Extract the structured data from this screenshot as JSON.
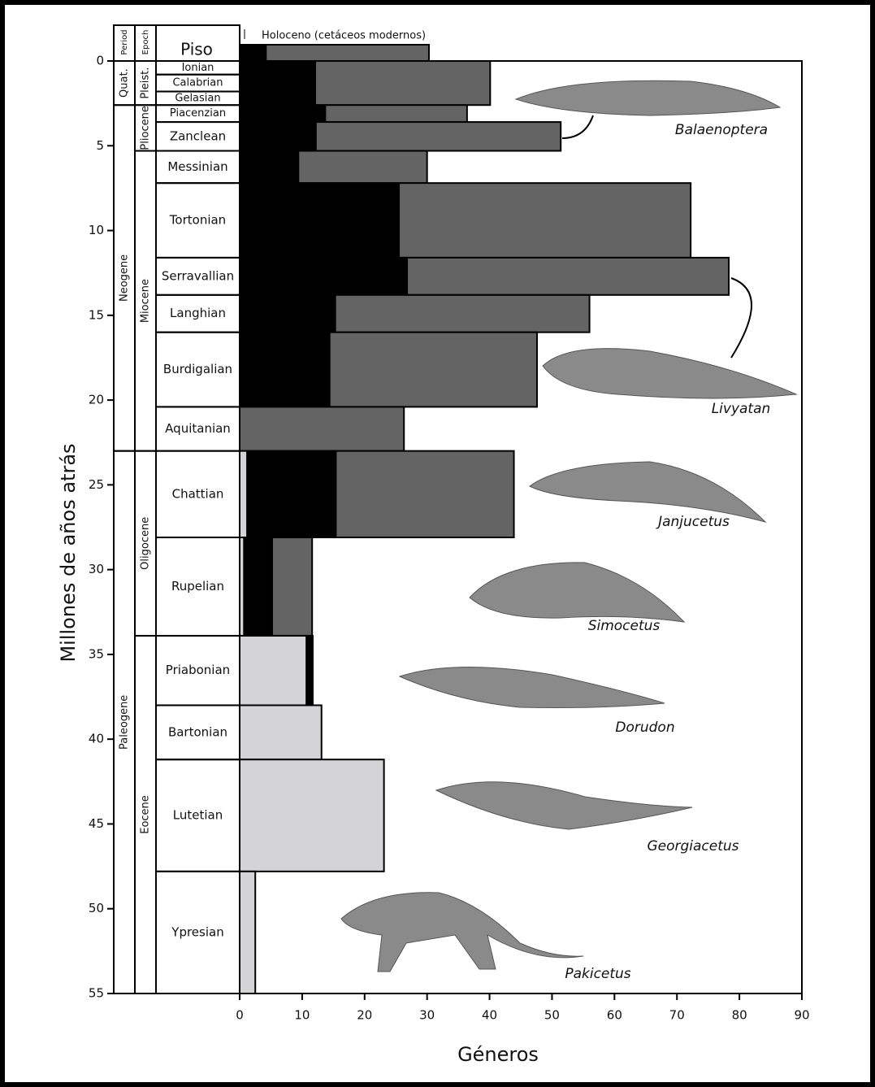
{
  "chart_data": {
    "type": "stacked-interval-bar",
    "y_label": "Millones de años atrás",
    "x_label": "Géneros",
    "ylim": [
      0,
      55
    ],
    "yticks": [
      0,
      5,
      10,
      15,
      20,
      25,
      30,
      35,
      40,
      45,
      50,
      55
    ],
    "xlim": [
      0,
      90
    ],
    "xticks": [
      0,
      10,
      20,
      30,
      40,
      50,
      60,
      70,
      80,
      90
    ],
    "colors": [
      "#d4d4d6",
      "#000000",
      "#646464"
    ],
    "headers": {
      "period": "Period",
      "epoch": "Epoch",
      "stage": "Piso"
    },
    "periods": [
      {
        "name": "Quat.",
        "start": 0,
        "end": 2.6
      },
      {
        "name": "Neogene",
        "start": 2.6,
        "end": 23
      },
      {
        "name": "Paleogene",
        "start": 23,
        "end": 55
      }
    ],
    "epochs": [
      {
        "name": "Pleist.",
        "start": 0,
        "end": 2.6
      },
      {
        "name": "Pliocene",
        "start": 2.6,
        "end": 5.3
      },
      {
        "name": "Miocene",
        "start": 5.3,
        "end": 23
      },
      {
        "name": "Oligocene",
        "start": 23,
        "end": 33.9
      },
      {
        "name": "Eocene",
        "start": 33.9,
        "end": 55
      }
    ],
    "stages": [
      {
        "name": "Ionian",
        "start": 0,
        "end": 0.8
      },
      {
        "name": "Calabrian",
        "start": 0.8,
        "end": 1.8
      },
      {
        "name": "Gelasian",
        "start": 1.8,
        "end": 2.6
      },
      {
        "name": "Piacenzian",
        "start": 2.6,
        "end": 3.6
      },
      {
        "name": "Zanclean",
        "start": 3.6,
        "end": 5.3
      },
      {
        "name": "Messinian",
        "start": 5.3,
        "end": 7.2
      },
      {
        "name": "Tortonian",
        "start": 7.2,
        "end": 11.6
      },
      {
        "name": "Serravallian",
        "start": 11.6,
        "end": 13.8
      },
      {
        "name": "Langhian",
        "start": 13.8,
        "end": 16
      },
      {
        "name": "Burdigalian",
        "start": 16,
        "end": 20.4
      },
      {
        "name": "Aquitanian",
        "start": 20.4,
        "end": 23
      },
      {
        "name": "Chattian",
        "start": 23,
        "end": 28.1
      },
      {
        "name": "Rupelian",
        "start": 28.1,
        "end": 33.9
      },
      {
        "name": "Priabonian",
        "start": 33.9,
        "end": 38
      },
      {
        "name": "Bartonian",
        "start": 38,
        "end": 41.2
      },
      {
        "name": "Lutetian",
        "start": 41.2,
        "end": 47.8
      },
      {
        "name": "Ypresian",
        "start": 47.8,
        "end": 55
      }
    ],
    "bars": [
      {
        "start": 0,
        "end": 2.6,
        "values": [
          0,
          12.1,
          28
        ]
      },
      {
        "start": 2.6,
        "end": 3.6,
        "values": [
          0,
          13.7,
          22.7
        ]
      },
      {
        "start": 3.6,
        "end": 5.3,
        "values": [
          0,
          12.2,
          39.2
        ]
      },
      {
        "start": 5.3,
        "end": 7.2,
        "values": [
          0,
          9.4,
          20.6
        ]
      },
      {
        "start": 7.2,
        "end": 11.6,
        "values": [
          0,
          25.5,
          46.7
        ]
      },
      {
        "start": 11.6,
        "end": 13.8,
        "values": [
          0,
          26.8,
          51.5
        ]
      },
      {
        "start": 13.8,
        "end": 16,
        "values": [
          0,
          15.3,
          40.7
        ]
      },
      {
        "start": 16,
        "end": 20.4,
        "values": [
          0,
          14.4,
          33.2
        ]
      },
      {
        "start": 20.4,
        "end": 23,
        "values": [
          0,
          0,
          26.3
        ]
      },
      {
        "start": 23,
        "end": 28.1,
        "values": [
          1.2,
          14.2,
          28.5
        ]
      },
      {
        "start": 28.1,
        "end": 33.9,
        "values": [
          0.7,
          4.5,
          6.4
        ]
      },
      {
        "start": 33.9,
        "end": 38,
        "values": [
          10.7,
          1,
          0
        ]
      },
      {
        "start": 38,
        "end": 41.2,
        "values": [
          13.1,
          0,
          0
        ]
      },
      {
        "start": 41.2,
        "end": 47.8,
        "values": [
          23.1,
          0,
          0
        ]
      },
      {
        "start": 47.8,
        "end": 55,
        "values": [
          2.5,
          0,
          0
        ]
      }
    ],
    "holocene": {
      "label": "Holoceno (cetáceos modernos)",
      "values": [
        0,
        4.2,
        26.1
      ]
    },
    "annotations": [
      "Balaenoptera",
      "Livyatan",
      "Janjucetus",
      "Simocetus",
      "Dorudon",
      "Georgiacetus",
      "Pakicetus"
    ]
  }
}
